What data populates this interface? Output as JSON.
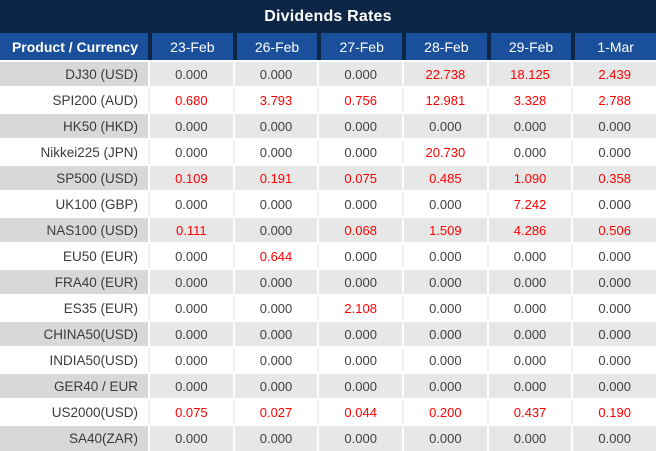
{
  "title": "Dividends Rates",
  "table": {
    "corner_header": "Product / Currency",
    "date_columns": [
      "23-Feb",
      "26-Feb",
      "27-Feb",
      "28-Feb",
      "29-Feb",
      "1-Mar"
    ],
    "rows": [
      {
        "product": "DJ30 (USD)",
        "values": [
          "0.000",
          "0.000",
          "0.000",
          "22.738",
          "18.125",
          "2.439"
        ]
      },
      {
        "product": "SPI200 (AUD)",
        "values": [
          "0.680",
          "3.793",
          "0.756",
          "12.981",
          "3.328",
          "2.788"
        ]
      },
      {
        "product": "HK50 (HKD)",
        "values": [
          "0.000",
          "0.000",
          "0.000",
          "0.000",
          "0.000",
          "0.000"
        ]
      },
      {
        "product": "Nikkei225 (JPN)",
        "values": [
          "0.000",
          "0.000",
          "0.000",
          "20.730",
          "0.000",
          "0.000"
        ]
      },
      {
        "product": "SP500 (USD)",
        "values": [
          "0.109",
          "0.191",
          "0.075",
          "0.485",
          "1.090",
          "0.358"
        ]
      },
      {
        "product": "UK100 (GBP)",
        "values": [
          "0.000",
          "0.000",
          "0.000",
          "0.000",
          "7.242",
          "0.000"
        ]
      },
      {
        "product": "NAS100 (USD)",
        "values": [
          "0.111",
          "0.000",
          "0.068",
          "1.509",
          "4.286",
          "0.506"
        ]
      },
      {
        "product": "EU50 (EUR)",
        "values": [
          "0.000",
          "0.644",
          "0.000",
          "0.000",
          "0.000",
          "0.000"
        ]
      },
      {
        "product": "FRA40 (EUR)",
        "values": [
          "0.000",
          "0.000",
          "0.000",
          "0.000",
          "0.000",
          "0.000"
        ]
      },
      {
        "product": "ES35 (EUR)",
        "values": [
          "0.000",
          "0.000",
          "2.108",
          "0.000",
          "0.000",
          "0.000"
        ]
      },
      {
        "product": "CHINA50(USD)",
        "values": [
          "0.000",
          "0.000",
          "0.000",
          "0.000",
          "0.000",
          "0.000"
        ]
      },
      {
        "product": "INDIA50(USD)",
        "values": [
          "0.000",
          "0.000",
          "0.000",
          "0.000",
          "0.000",
          "0.000"
        ]
      },
      {
        "product": "GER40 / EUR",
        "values": [
          "0.000",
          "0.000",
          "0.000",
          "0.000",
          "0.000",
          "0.000"
        ]
      },
      {
        "product": "US2000(USD)",
        "values": [
          "0.075",
          "0.027",
          "0.044",
          "0.200",
          "0.437",
          "0.190"
        ]
      },
      {
        "product": "SA40(ZAR)",
        "values": [
          "0.000",
          "0.000",
          "0.000",
          "0.000",
          "0.000",
          "0.000"
        ]
      }
    ]
  },
  "colors": {
    "title_bar_bg": "#0e2646",
    "header_bg": "#1a4f9c",
    "header_text": "#ffffff",
    "value_zero": "#3f3f3f",
    "value_nonzero": "#fe0000",
    "alt_row_bg": "#e7e7e7",
    "alt_label_bg": "#d8d8d8",
    "plain_row_bg": "#ffffff"
  }
}
